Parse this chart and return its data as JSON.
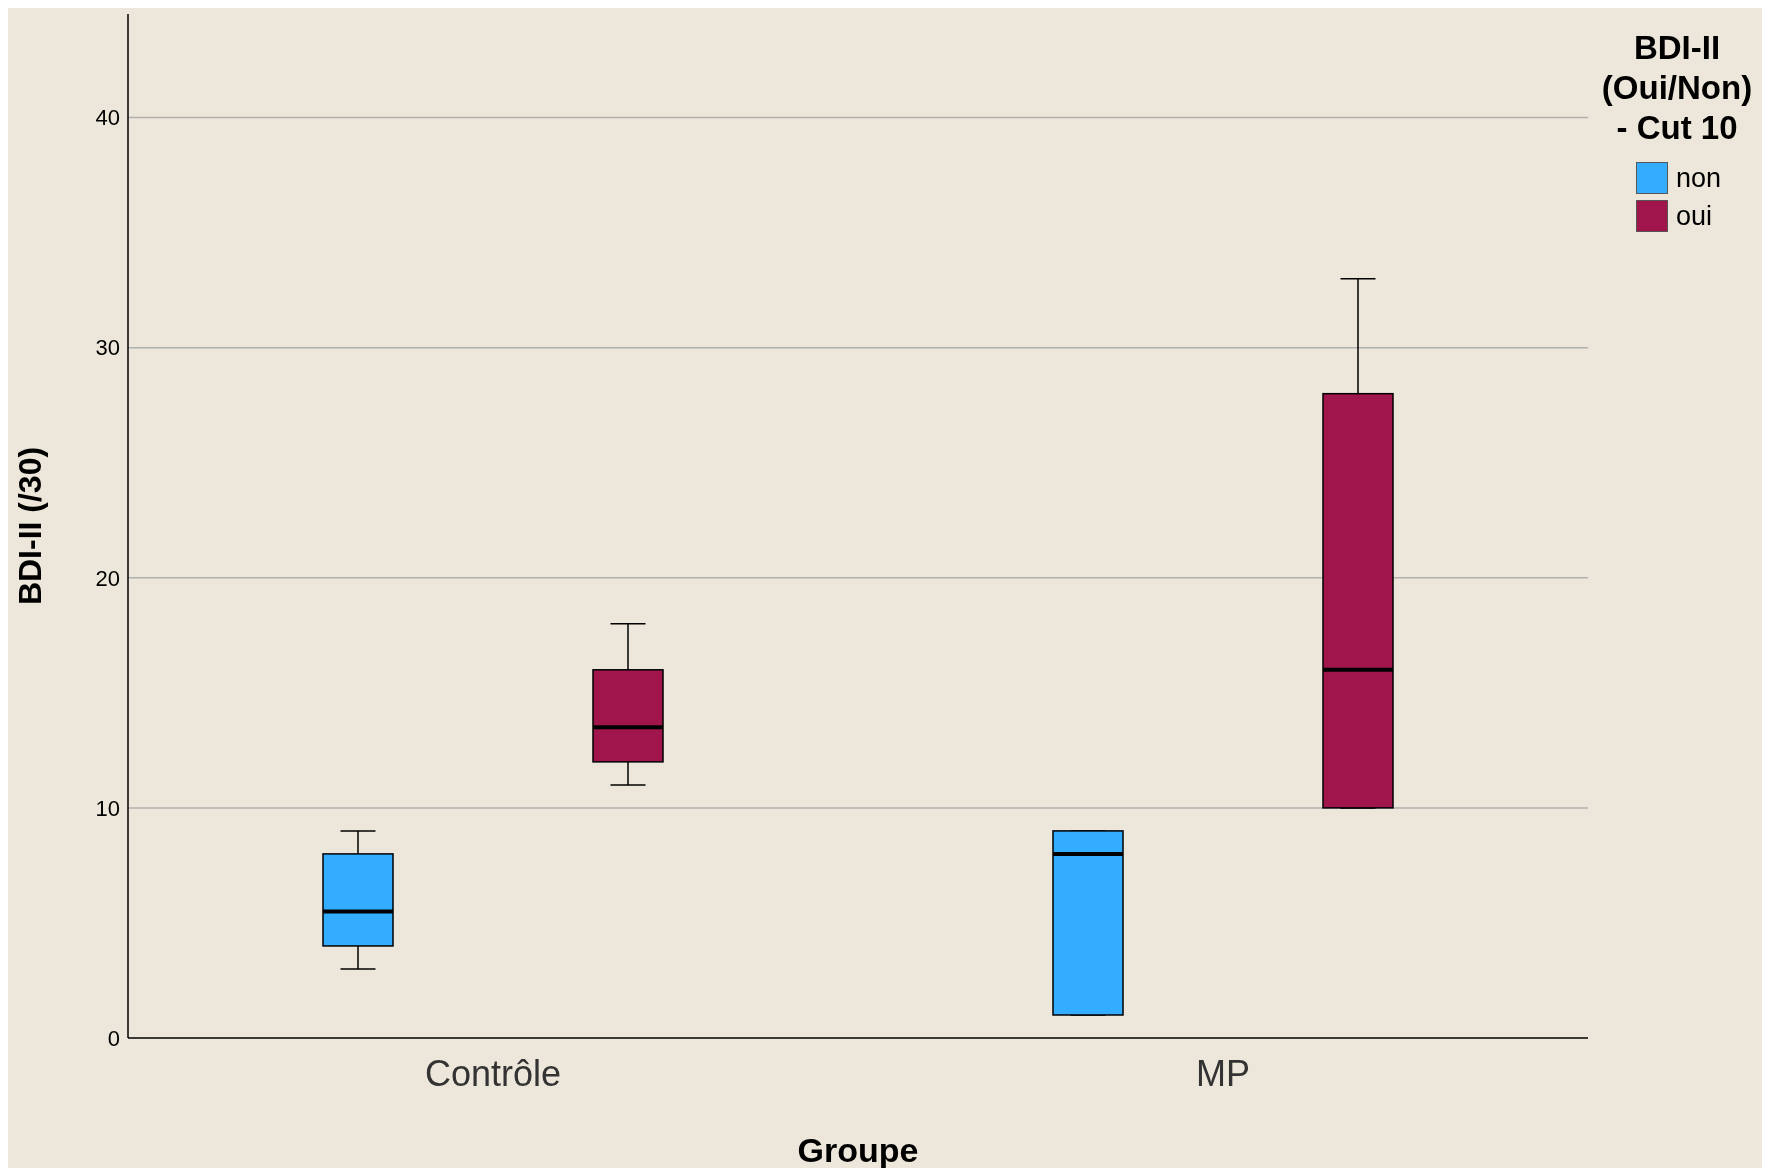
{
  "chart_data": {
    "type": "box",
    "xlabel": "Groupe",
    "ylabel": "BDI-II (/30)",
    "legend_title": "BDI-II (Oui/Non) - Cut 10",
    "categories": [
      "Contrôle",
      "MP"
    ],
    "series": [
      {
        "name": "non",
        "color": "#33adff",
        "boxes": [
          {
            "low": 3,
            "q1": 4,
            "median": 5.5,
            "q3": 8,
            "high": 9
          },
          {
            "low": 1,
            "q1": 1,
            "median": 8,
            "q3": 9,
            "high": 9
          }
        ]
      },
      {
        "name": "oui",
        "color": "#a0154b",
        "boxes": [
          {
            "low": 11,
            "q1": 12,
            "median": 13.5,
            "q3": 16,
            "high": 18
          },
          {
            "low": 10,
            "q1": 10,
            "median": 16,
            "q3": 28,
            "high": 33
          }
        ]
      }
    ],
    "ylim": [
      0,
      44.5
    ],
    "yticks": [
      0,
      10,
      20,
      30,
      40
    ],
    "grid": "y",
    "legend": "top right"
  }
}
